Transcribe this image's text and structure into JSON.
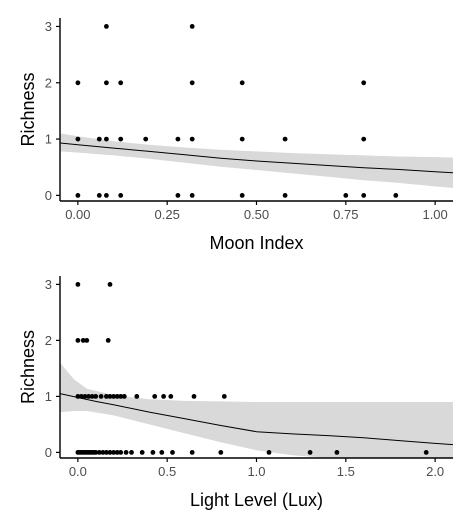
{
  "chart_data": [
    {
      "type": "scatter",
      "title": "",
      "xlabel": "Moon Index",
      "ylabel": "Richness",
      "xlim": [
        -0.05,
        1.05
      ],
      "ylim": [
        -0.1,
        3.15
      ],
      "xticks": [
        0.0,
        0.25,
        0.5,
        0.75,
        1.0
      ],
      "xtick_labels": [
        "0.00",
        "0.25",
        "0.50",
        "0.75",
        "1.00"
      ],
      "yticks": [
        0,
        1,
        2,
        3
      ],
      "ytick_labels": [
        "0",
        "1",
        "2",
        "3"
      ],
      "grid": false,
      "points": [
        {
          "x": 0.0,
          "y": 0
        },
        {
          "x": 0.06,
          "y": 0
        },
        {
          "x": 0.08,
          "y": 0
        },
        {
          "x": 0.12,
          "y": 0
        },
        {
          "x": 0.28,
          "y": 0
        },
        {
          "x": 0.32,
          "y": 0
        },
        {
          "x": 0.46,
          "y": 0
        },
        {
          "x": 0.58,
          "y": 0
        },
        {
          "x": 0.75,
          "y": 0
        },
        {
          "x": 0.8,
          "y": 0
        },
        {
          "x": 0.89,
          "y": 0
        },
        {
          "x": 0.0,
          "y": 1
        },
        {
          "x": 0.06,
          "y": 1
        },
        {
          "x": 0.08,
          "y": 1
        },
        {
          "x": 0.12,
          "y": 1
        },
        {
          "x": 0.19,
          "y": 1
        },
        {
          "x": 0.28,
          "y": 1
        },
        {
          "x": 0.32,
          "y": 1
        },
        {
          "x": 0.46,
          "y": 1
        },
        {
          "x": 0.58,
          "y": 1
        },
        {
          "x": 0.8,
          "y": 1
        },
        {
          "x": 0.0,
          "y": 2
        },
        {
          "x": 0.08,
          "y": 2
        },
        {
          "x": 0.12,
          "y": 2
        },
        {
          "x": 0.32,
          "y": 2
        },
        {
          "x": 0.46,
          "y": 2
        },
        {
          "x": 0.8,
          "y": 2
        },
        {
          "x": 0.08,
          "y": 3
        },
        {
          "x": 0.32,
          "y": 3
        }
      ],
      "fit_line": [
        {
          "x": -0.05,
          "y": 0.93
        },
        {
          "x": 0.0,
          "y": 0.9
        },
        {
          "x": 0.1,
          "y": 0.84
        },
        {
          "x": 0.2,
          "y": 0.78
        },
        {
          "x": 0.3,
          "y": 0.72
        },
        {
          "x": 0.4,
          "y": 0.66
        },
        {
          "x": 0.5,
          "y": 0.61
        },
        {
          "x": 0.6,
          "y": 0.57
        },
        {
          "x": 0.7,
          "y": 0.53
        },
        {
          "x": 0.8,
          "y": 0.49
        },
        {
          "x": 0.9,
          "y": 0.46
        },
        {
          "x": 1.0,
          "y": 0.42
        },
        {
          "x": 1.05,
          "y": 0.4
        }
      ],
      "confidence_band": {
        "upper": [
          {
            "x": -0.05,
            "y": 1.1
          },
          {
            "x": 0.0,
            "y": 1.05
          },
          {
            "x": 0.1,
            "y": 0.96
          },
          {
            "x": 0.2,
            "y": 0.9
          },
          {
            "x": 0.3,
            "y": 0.85
          },
          {
            "x": 0.4,
            "y": 0.81
          },
          {
            "x": 0.5,
            "y": 0.78
          },
          {
            "x": 0.6,
            "y": 0.75
          },
          {
            "x": 0.7,
            "y": 0.73
          },
          {
            "x": 0.8,
            "y": 0.71
          },
          {
            "x": 0.9,
            "y": 0.69
          },
          {
            "x": 1.0,
            "y": 0.68
          },
          {
            "x": 1.05,
            "y": 0.67
          }
        ],
        "lower": [
          {
            "x": -0.05,
            "y": 0.78
          },
          {
            "x": 0.0,
            "y": 0.76
          },
          {
            "x": 0.1,
            "y": 0.71
          },
          {
            "x": 0.2,
            "y": 0.65
          },
          {
            "x": 0.3,
            "y": 0.58
          },
          {
            "x": 0.4,
            "y": 0.51
          },
          {
            "x": 0.5,
            "y": 0.45
          },
          {
            "x": 0.6,
            "y": 0.39
          },
          {
            "x": 0.7,
            "y": 0.33
          },
          {
            "x": 0.8,
            "y": 0.27
          },
          {
            "x": 0.9,
            "y": 0.22
          },
          {
            "x": 1.0,
            "y": 0.16
          },
          {
            "x": 1.05,
            "y": 0.13
          }
        ]
      },
      "colors": {
        "points": "#000000",
        "line": "#000000",
        "band": "#d9d9d9"
      }
    },
    {
      "type": "scatter",
      "title": "",
      "xlabel": "Light Level (Lux)",
      "ylabel": "Richness",
      "xlim": [
        -0.1,
        2.1
      ],
      "ylim": [
        -0.1,
        3.15
      ],
      "xticks": [
        0.0,
        0.5,
        1.0,
        1.5,
        2.0
      ],
      "xtick_labels": [
        "0.0",
        "0.5",
        "1.0",
        "1.5",
        "2.0"
      ],
      "yticks": [
        0,
        1,
        2,
        3
      ],
      "ytick_labels": [
        "0",
        "1",
        "2",
        "3"
      ],
      "grid": false,
      "points": [
        {
          "x": 0.0,
          "y": 0
        },
        {
          "x": 0.01,
          "y": 0
        },
        {
          "x": 0.02,
          "y": 0
        },
        {
          "x": 0.03,
          "y": 0
        },
        {
          "x": 0.04,
          "y": 0
        },
        {
          "x": 0.05,
          "y": 0
        },
        {
          "x": 0.06,
          "y": 0
        },
        {
          "x": 0.07,
          "y": 0
        },
        {
          "x": 0.08,
          "y": 0
        },
        {
          "x": 0.09,
          "y": 0
        },
        {
          "x": 0.1,
          "y": 0
        },
        {
          "x": 0.12,
          "y": 0
        },
        {
          "x": 0.14,
          "y": 0
        },
        {
          "x": 0.16,
          "y": 0
        },
        {
          "x": 0.18,
          "y": 0
        },
        {
          "x": 0.2,
          "y": 0
        },
        {
          "x": 0.22,
          "y": 0
        },
        {
          "x": 0.24,
          "y": 0
        },
        {
          "x": 0.27,
          "y": 0
        },
        {
          "x": 0.3,
          "y": 0
        },
        {
          "x": 0.36,
          "y": 0
        },
        {
          "x": 0.42,
          "y": 0
        },
        {
          "x": 0.47,
          "y": 0
        },
        {
          "x": 0.53,
          "y": 0
        },
        {
          "x": 0.64,
          "y": 0
        },
        {
          "x": 0.8,
          "y": 0
        },
        {
          "x": 1.07,
          "y": 0
        },
        {
          "x": 1.3,
          "y": 0
        },
        {
          "x": 1.45,
          "y": 0
        },
        {
          "x": 1.95,
          "y": 0
        },
        {
          "x": 0.0,
          "y": 1
        },
        {
          "x": 0.02,
          "y": 1
        },
        {
          "x": 0.04,
          "y": 1
        },
        {
          "x": 0.06,
          "y": 1
        },
        {
          "x": 0.08,
          "y": 1
        },
        {
          "x": 0.1,
          "y": 1
        },
        {
          "x": 0.13,
          "y": 1
        },
        {
          "x": 0.16,
          "y": 1
        },
        {
          "x": 0.18,
          "y": 1
        },
        {
          "x": 0.2,
          "y": 1
        },
        {
          "x": 0.22,
          "y": 1
        },
        {
          "x": 0.24,
          "y": 1
        },
        {
          "x": 0.26,
          "y": 1
        },
        {
          "x": 0.33,
          "y": 1
        },
        {
          "x": 0.43,
          "y": 1
        },
        {
          "x": 0.48,
          "y": 1
        },
        {
          "x": 0.52,
          "y": 1
        },
        {
          "x": 0.65,
          "y": 1
        },
        {
          "x": 0.82,
          "y": 1
        },
        {
          "x": 0.0,
          "y": 2
        },
        {
          "x": 0.03,
          "y": 2
        },
        {
          "x": 0.05,
          "y": 2
        },
        {
          "x": 0.17,
          "y": 2
        },
        {
          "x": 0.0,
          "y": 3
        },
        {
          "x": 0.18,
          "y": 3
        }
      ],
      "fit_line": [
        {
          "x": -0.1,
          "y": 1.05
        },
        {
          "x": 0.0,
          "y": 0.98
        },
        {
          "x": 0.1,
          "y": 0.91
        },
        {
          "x": 0.2,
          "y": 0.85
        },
        {
          "x": 0.4,
          "y": 0.72
        },
        {
          "x": 0.6,
          "y": 0.6
        },
        {
          "x": 0.8,
          "y": 0.48
        },
        {
          "x": 1.0,
          "y": 0.37
        },
        {
          "x": 1.2,
          "y": 0.33
        },
        {
          "x": 1.4,
          "y": 0.3
        },
        {
          "x": 1.6,
          "y": 0.26
        },
        {
          "x": 1.8,
          "y": 0.21
        },
        {
          "x": 2.0,
          "y": 0.16
        },
        {
          "x": 2.1,
          "y": 0.14
        }
      ],
      "confidence_band": {
        "upper": [
          {
            "x": -0.1,
            "y": 1.6
          },
          {
            "x": -0.02,
            "y": 1.3
          },
          {
            "x": 0.05,
            "y": 1.14
          },
          {
            "x": 0.2,
            "y": 1.02
          },
          {
            "x": 0.4,
            "y": 0.95
          },
          {
            "x": 0.6,
            "y": 0.92
          },
          {
            "x": 0.8,
            "y": 0.91
          },
          {
            "x": 1.0,
            "y": 0.9
          },
          {
            "x": 1.2,
            "y": 0.9
          },
          {
            "x": 1.4,
            "y": 0.9
          },
          {
            "x": 1.6,
            "y": 0.9
          },
          {
            "x": 1.8,
            "y": 0.9
          },
          {
            "x": 2.0,
            "y": 0.9
          },
          {
            "x": 2.1,
            "y": 0.9
          }
        ],
        "lower": [
          {
            "x": -0.1,
            "y": 0.72
          },
          {
            "x": -0.02,
            "y": 0.74
          },
          {
            "x": 0.05,
            "y": 0.74
          },
          {
            "x": 0.2,
            "y": 0.66
          },
          {
            "x": 0.4,
            "y": 0.5
          },
          {
            "x": 0.6,
            "y": 0.34
          },
          {
            "x": 0.8,
            "y": 0.18
          },
          {
            "x": 1.0,
            "y": 0.04
          },
          {
            "x": 1.2,
            "y": -0.05
          },
          {
            "x": 1.4,
            "y": -0.1
          },
          {
            "x": 1.6,
            "y": -0.1
          },
          {
            "x": 1.8,
            "y": -0.1
          },
          {
            "x": 2.0,
            "y": -0.1
          },
          {
            "x": 2.1,
            "y": -0.1
          }
        ]
      },
      "colors": {
        "points": "#000000",
        "line": "#000000",
        "band": "#d9d9d9"
      }
    }
  ]
}
